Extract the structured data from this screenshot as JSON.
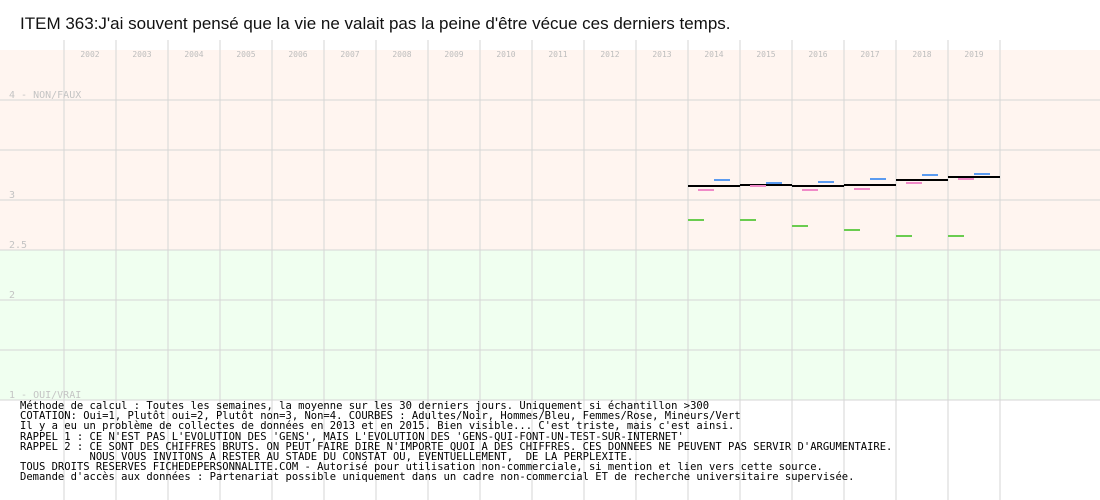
{
  "chart_data": {
    "type": "line",
    "title": "ITEM 363:J'ai souvent pensé que la vie ne valait pas la peine d'être vécue ces derniers temps.",
    "categories": [
      "2002",
      "2003",
      "2004",
      "2005",
      "2006",
      "2007",
      "2008",
      "2009",
      "2010",
      "2011",
      "2012",
      "2013",
      "2014",
      "2015",
      "2016",
      "2017",
      "2018",
      "2019"
    ],
    "ylim": [
      1,
      4.5
    ],
    "y_labels": [
      {
        "value": 4,
        "label": "4 - NON/FAUX"
      },
      {
        "value": 3,
        "label": "3"
      },
      {
        "value": 2.5,
        "label": "2.5"
      },
      {
        "value": 2,
        "label": "2"
      },
      {
        "value": 1,
        "label": "1 - OUI/VRAI"
      }
    ],
    "series": [
      {
        "name": "Adultes",
        "color": "#000000",
        "values": [
          null,
          null,
          null,
          null,
          null,
          null,
          null,
          null,
          null,
          null,
          null,
          null,
          3.14,
          3.15,
          3.14,
          3.15,
          3.2,
          3.23
        ]
      },
      {
        "name": "Hommes",
        "color": "#5b9bf0",
        "values": [
          null,
          null,
          null,
          null,
          null,
          null,
          null,
          null,
          null,
          null,
          null,
          null,
          3.2,
          3.17,
          3.18,
          3.21,
          3.25,
          3.26
        ]
      },
      {
        "name": "Femmes",
        "color": "#f08ac8",
        "values": [
          null,
          null,
          null,
          null,
          null,
          null,
          null,
          null,
          null,
          null,
          null,
          null,
          3.1,
          3.14,
          3.1,
          3.11,
          3.17,
          3.21
        ]
      },
      {
        "name": "Mineurs",
        "color": "#6acc50",
        "values": [
          null,
          null,
          null,
          null,
          null,
          null,
          null,
          null,
          null,
          null,
          null,
          null,
          2.8,
          2.8,
          2.74,
          2.7,
          2.64,
          2.64
        ]
      }
    ],
    "bands": [
      {
        "from": 2.5,
        "to": 4.5,
        "color": "#fff5f0"
      },
      {
        "from": 1,
        "to": 2.5,
        "color": "#f0fff0"
      }
    ],
    "grid": true
  },
  "notes": [
    "Méthode de calcul : Toutes les semaines, la moyenne sur les 30 derniers jours. Uniquement si échantillon >300",
    "COTATION: Oui=1, Plutôt oui=2, Plutôt non=3, Non=4. COURBES : Adultes/Noir, Hommes/Bleu, Femmes/Rose, Mineurs/Vert",
    "Il y a eu un problème de collectes de données en 2013 et en 2015. Bien visible... C'est triste, mais c'est ainsi.",
    "RAPPEL 1 : CE N'EST PAS L'EVOLUTION DES 'GENS', MAIS L'EVOLUTION DES 'GENS-QUI-FONT-UN-TEST-SUR-INTERNET'",
    "RAPPEL 2 : CE SONT DES CHIFFRES BRUTS. ON PEUT FAIRE DIRE N'IMPORTE QUOI A DES CHIFFRES. CES DONNEES NE PEUVENT PAS SERVIR D'ARGUMENTAIRE.",
    "           NOUS VOUS INVITONS A RESTER AU STADE DU CONSTAT OU, EVENTUELLEMENT,  DE LA PERPLEXITE.",
    "TOUS DROITS RESERVES FICHEDEPERSONNALITE.COM - Autorisé pour utilisation non-commerciale, si mention et lien vers cette source.",
    "Demande d'accès aux données : Partenariat possible uniquement dans un cadre non-commercial ET de recherche universitaire supervisée."
  ]
}
